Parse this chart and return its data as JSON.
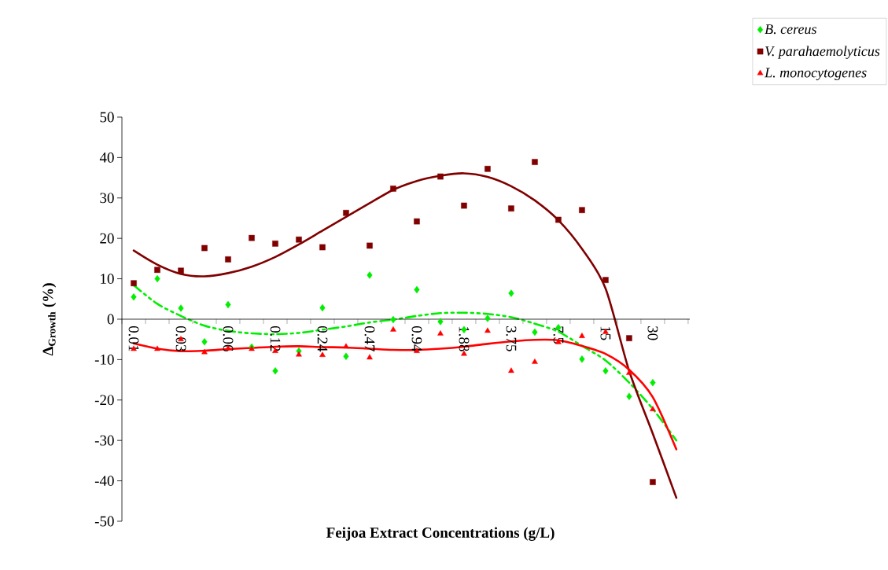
{
  "chart_data": {
    "type": "scatter",
    "xlabel": "Feijoa Extract Concentrations (g/L)",
    "ylabel": "Δ$_{Growth}$ (%)",
    "categories": [
      "0.01",
      null,
      "0.03",
      null,
      "0.06",
      null,
      "0.12",
      null,
      "0.24",
      null,
      "0.47",
      null,
      "0.94",
      null,
      "1.88",
      null,
      "3.75",
      null,
      "7.5",
      null,
      "15",
      null,
      "30",
      null
    ],
    "ylim": [
      -50,
      50
    ],
    "yticks": [
      -50,
      -40,
      -30,
      -20,
      -10,
      0,
      10,
      20,
      30,
      40,
      50
    ],
    "legend": "top right",
    "grid": false,
    "series": [
      {
        "name": "B. cereus",
        "color": "#00ee00",
        "marker": "diamond",
        "values": [
          5.5,
          10.0,
          2.7,
          -5.6,
          3.6,
          -6.9,
          -12.8,
          -7.9,
          2.8,
          -9.2,
          10.9,
          -0.1,
          7.3,
          -0.6,
          -2.6,
          0.2,
          6.4,
          -3.2,
          -2.1,
          -9.9,
          -12.8,
          -19.1,
          -15.7,
          null
        ]
      },
      {
        "name": "V. parahaemolyticus",
        "color": "#800000",
        "marker": "square",
        "values": [
          8.9,
          12.2,
          12.0,
          17.6,
          14.8,
          20.1,
          18.7,
          19.7,
          17.8,
          26.3,
          18.2,
          32.3,
          24.2,
          35.3,
          28.1,
          37.2,
          27.4,
          38.9,
          24.6,
          27.0,
          9.7,
          -4.7,
          -40.3,
          null
        ]
      },
      {
        "name": "L. monocytogenes",
        "color": "#ff0000",
        "marker": "triangle",
        "values": [
          -7.4,
          -7.4,
          -5.0,
          -8.2,
          -7.3,
          -7.4,
          -7.9,
          -8.8,
          -8.9,
          -6.8,
          -9.5,
          -2.6,
          -7.9,
          -3.6,
          -8.6,
          -2.9,
          -12.8,
          -10.6,
          -5.7,
          -4.2,
          -3.2,
          -13.3,
          -22.3,
          null
        ]
      },
      {
        "type": "line",
        "color": "#00ee00",
        "line_style": "dashed",
        "values": [
          8.4,
          3.8,
          0.8,
          -1.6,
          -2.9,
          -3.5,
          -3.7,
          -3.4,
          -2.6,
          -1.8,
          -0.8,
          -0.1,
          0.8,
          1.5,
          1.6,
          1.3,
          0.5,
          -1.1,
          -3.1,
          -6.6,
          -10.2,
          -15.7,
          -22.2,
          -30.0
        ]
      },
      {
        "type": "line",
        "color": "#800000",
        "line_style": "solid",
        "values": [
          17.0,
          13.5,
          11.2,
          10.6,
          11.4,
          13.0,
          15.4,
          18.5,
          21.9,
          25.3,
          28.7,
          32.0,
          34.2,
          35.5,
          36.1,
          35.2,
          32.9,
          29.4,
          24.5,
          17.4,
          7.6,
          -12.8,
          -28.3,
          -44.2
        ]
      },
      {
        "type": "line",
        "color": "#ff0000",
        "line_style": "solid",
        "values": [
          -6.0,
          -7.3,
          -7.9,
          -7.8,
          -7.4,
          -7.1,
          -6.8,
          -6.7,
          -6.9,
          -7.0,
          -7.3,
          -7.6,
          -7.6,
          -7.3,
          -6.8,
          -6.1,
          -5.5,
          -5.1,
          -5.2,
          -6.6,
          -8.6,
          -12.5,
          -19.3,
          -32.2
        ]
      }
    ]
  }
}
